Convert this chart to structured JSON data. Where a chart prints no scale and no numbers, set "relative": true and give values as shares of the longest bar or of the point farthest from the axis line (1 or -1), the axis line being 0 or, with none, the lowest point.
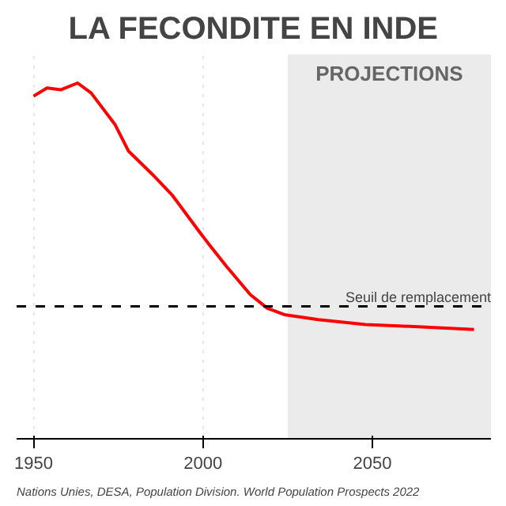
{
  "chart_data": {
    "type": "line",
    "title": "LA FECONDITE EN INDE",
    "relative": true,
    "x": [
      1950,
      1954,
      1958,
      1963,
      1967,
      1974,
      1978,
      1985,
      1991,
      1999,
      2002,
      2007,
      2014,
      2019,
      2024,
      2034,
      2048,
      2061,
      2080
    ],
    "series": [
      {
        "color": "#ff0000",
        "values": [
          0.963,
          0.986,
          0.981,
          1.0,
          0.972,
          0.884,
          0.809,
          0.744,
          0.684,
          0.581,
          0.544,
          0.484,
          0.405,
          0.367,
          0.349,
          0.335,
          0.321,
          0.316,
          0.307
        ]
      }
    ],
    "xlim": [
      1945,
      2085
    ],
    "xticks": [
      1950,
      2000,
      2050
    ],
    "grid": "x",
    "bands": [
      {
        "axis": "x",
        "from": 2025,
        "to": 2085,
        "label": "PROJECTIONS",
        "color": "#ebebeb"
      }
    ],
    "ref_lines": [
      {
        "axis": "y",
        "value": 0.372,
        "label": "Seuil de remplacement",
        "color": "#000000",
        "line_style": "dashed"
      }
    ],
    "annotations": [
      "Nations Unies, DESA, Population Division. World Population Prospects 2022"
    ]
  }
}
